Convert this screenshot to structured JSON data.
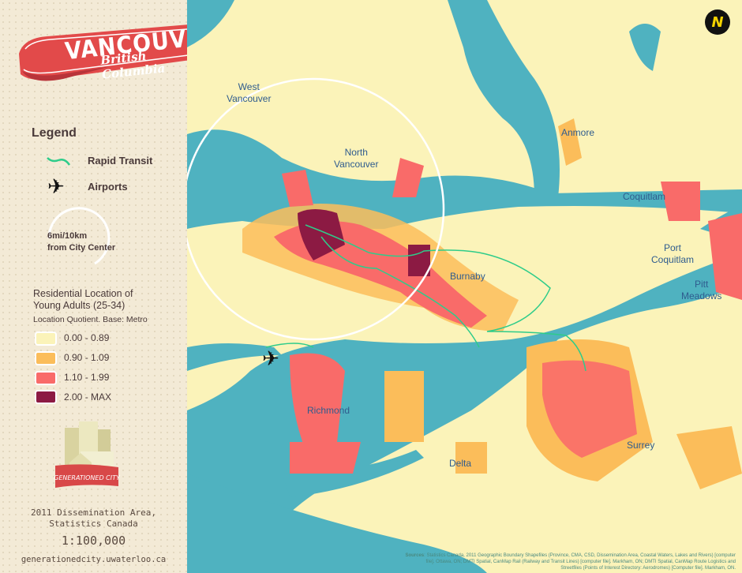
{
  "title": {
    "city": "VANCOUVER",
    "province": "British Columbia"
  },
  "legend": {
    "heading": "Legend",
    "rapid_transit": "Rapid Transit",
    "airports": "Airports",
    "radius": [
      "6mi/10km",
      "from City Center"
    ],
    "variable_title": [
      "Residential Location of",
      "Young Adults (25-34)"
    ],
    "variable_subtitle": "Location Quotient. Base: Metro",
    "classes": [
      {
        "label": "0.00 - 0.89",
        "color": "#fbf3b9"
      },
      {
        "label": "0.90 - 1.09",
        "color": "#fbbd5a"
      },
      {
        "label": "1.10 - 1.99",
        "color": "#f96b69"
      },
      {
        "label": "2.00 - MAX",
        "color": "#8c1a43"
      }
    ]
  },
  "logo_text": "GENERATIONED CITY",
  "data_source": [
    "2011 Dissemination Area,",
    "Statistics Canada"
  ],
  "scale": "1:100,000",
  "website": "generationedcity.uwaterloo.ca",
  "colors": {
    "water": "#4fb2c0",
    "land": "#fbf3b9",
    "transit": "#2ecc8a",
    "ribbon": "#e24a4a"
  },
  "map": {
    "compass": "N",
    "places": {
      "west_vancouver": [
        "West",
        "Vancouver"
      ],
      "north_vancouver": [
        "North",
        "Vancouver"
      ],
      "anmore": "Anmore",
      "coquitlam": "Coquitlam",
      "port_coquitlam": [
        "Port",
        "Coquitlam"
      ],
      "burnaby": "Burnaby",
      "pitt_meadows": [
        "Pitt",
        "Meadows"
      ],
      "richmond": "Richmond",
      "delta": "Delta",
      "surrey": "Surrey"
    },
    "sources_label": "Sources",
    "sources": ": Statistics Canada, 2011 Geographic Boundary Shapefiles (Province, CMA, CSD, Dissemination Area, Coastal Waters, Lakes and Rivers) [computer file]. Ottawa, ON; DMTI Spatial, CanMap Rail (Railway and Transit Lines) [computer file]. Markham, ON; DMTI Spatial, CanMap Route Logistics and Streetfiles (Points of Interest Directory: Aerodromes) [Computer file]. Markham, ON."
  }
}
